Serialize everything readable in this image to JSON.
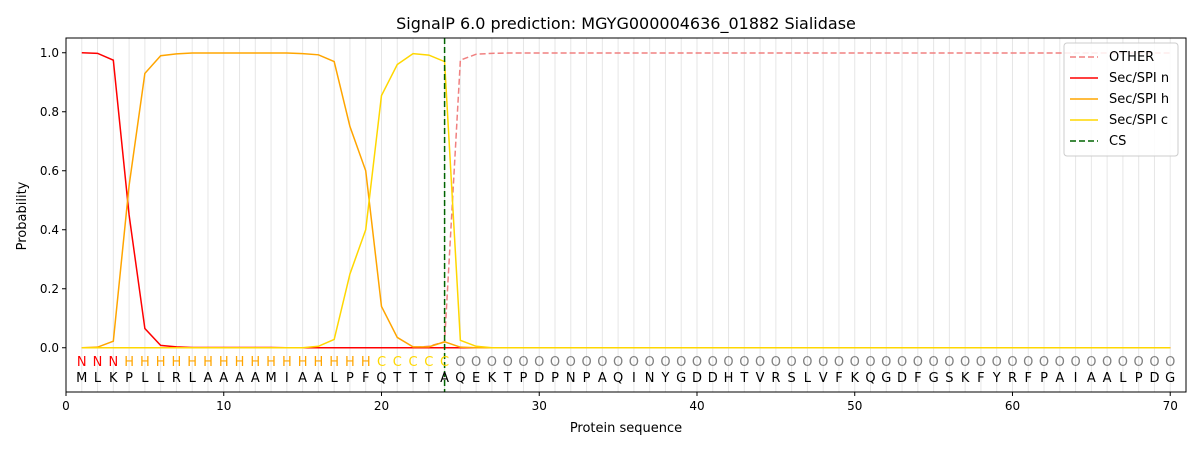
{
  "chart_data": {
    "type": "line",
    "title": "SignalP 6.0 prediction: MGYG000004636_01882 Sialidase",
    "xlabel": "Protein sequence",
    "ylabel": "Probability",
    "xlim": [
      0,
      71
    ],
    "ylim": [
      -0.15,
      1.05
    ],
    "x_ticks": [
      0,
      10,
      20,
      30,
      40,
      50,
      60,
      70
    ],
    "y_ticks": [
      0.0,
      0.2,
      0.4,
      0.6,
      0.8,
      1.0
    ],
    "grid": "vertical lines at each residue",
    "legend_position": "top-right",
    "sequence": [
      "M",
      "L",
      "K",
      "P",
      "L",
      "L",
      "R",
      "L",
      "A",
      "A",
      "A",
      "A",
      "M",
      "I",
      "A",
      "A",
      "L",
      "P",
      "F",
      "Q",
      "T",
      "T",
      "T",
      "A",
      "Q",
      "E",
      "K",
      "T",
      "P",
      "D",
      "P",
      "N",
      "P",
      "A",
      "Q",
      "I",
      "N",
      "Y",
      "G",
      "D",
      "D",
      "H",
      "T",
      "V",
      "R",
      "S",
      "L",
      "V",
      "F",
      "K",
      "Q",
      "G",
      "D",
      "F",
      "G",
      "S",
      "K",
      "F",
      "Y",
      "R",
      "F",
      "P",
      "A",
      "I",
      "A",
      "A",
      "L",
      "P",
      "D",
      "G"
    ],
    "region_labels": [
      "N",
      "N",
      "N",
      "H",
      "H",
      "H",
      "H",
      "H",
      "H",
      "H",
      "H",
      "H",
      "H",
      "H",
      "H",
      "H",
      "H",
      "H",
      "H",
      "C",
      "C",
      "C",
      "C",
      "C",
      "O",
      "O",
      "O",
      "O",
      "O",
      "O",
      "O",
      "O",
      "O",
      "O",
      "O",
      "O",
      "O",
      "O",
      "O",
      "O",
      "O",
      "O",
      "O",
      "O",
      "O",
      "O",
      "O",
      "O",
      "O",
      "O",
      "O",
      "O",
      "O",
      "O",
      "O",
      "O",
      "O",
      "O",
      "O",
      "O",
      "O",
      "O",
      "O",
      "O",
      "O",
      "O",
      "O",
      "O",
      "O",
      "O"
    ],
    "region_colors": {
      "N": "#ff0000",
      "H": "#ffa500",
      "C": "#ffd700",
      "O": "#808080"
    },
    "cleavage_site": 24,
    "series": [
      {
        "name": "OTHER",
        "color": "#f08080",
        "dash": "dashed",
        "values": [
          0,
          0,
          0,
          0,
          0,
          0,
          0,
          0,
          0,
          0,
          0,
          0,
          0,
          0,
          0,
          0,
          0,
          0,
          0,
          0,
          0,
          0,
          0.005,
          0.02,
          0.975,
          0.995,
          0.998,
          0.999,
          0.999,
          0.999,
          0.999,
          0.999,
          0.999,
          0.999,
          0.999,
          0.999,
          0.999,
          0.999,
          0.999,
          0.999,
          0.999,
          0.999,
          0.999,
          0.999,
          0.999,
          0.999,
          0.999,
          0.999,
          0.999,
          0.999,
          0.999,
          0.999,
          0.999,
          0.999,
          0.999,
          0.999,
          0.999,
          0.999,
          0.999,
          0.999,
          0.999,
          0.999,
          0.999,
          0.999,
          0.999,
          0.999,
          0.999,
          0.999,
          0.999,
          0.999
        ]
      },
      {
        "name": "Sec/SPI n",
        "color": "#ff0000",
        "dash": "solid",
        "values": [
          1.0,
          0.998,
          0.975,
          0.45,
          0.065,
          0.008,
          0.003,
          0.001,
          0.001,
          0.001,
          0.001,
          0.001,
          0.001,
          0,
          0,
          0,
          0,
          0,
          0,
          0,
          0,
          0,
          0,
          0,
          0,
          0,
          0,
          0,
          0,
          0,
          0,
          0,
          0,
          0,
          0,
          0,
          0,
          0,
          0,
          0,
          0,
          0,
          0,
          0,
          0,
          0,
          0,
          0,
          0,
          0,
          0,
          0,
          0,
          0,
          0,
          0,
          0,
          0,
          0,
          0,
          0,
          0,
          0,
          0,
          0,
          0,
          0,
          0,
          0,
          0
        ]
      },
      {
        "name": "Sec/SPI h",
        "color": "#ffa500",
        "dash": "solid",
        "values": [
          0,
          0.002,
          0.022,
          0.55,
          0.93,
          0.99,
          0.996,
          0.999,
          0.999,
          0.999,
          0.999,
          0.999,
          0.999,
          0.999,
          0.997,
          0.993,
          0.97,
          0.75,
          0.6,
          0.14,
          0.035,
          0.003,
          0.003,
          0.02,
          0.002,
          0,
          0,
          0,
          0,
          0,
          0,
          0,
          0,
          0,
          0,
          0,
          0,
          0,
          0,
          0,
          0,
          0,
          0,
          0,
          0,
          0,
          0,
          0,
          0,
          0,
          0,
          0,
          0,
          0,
          0,
          0,
          0,
          0,
          0,
          0,
          0,
          0,
          0,
          0,
          0,
          0,
          0,
          0,
          0,
          0
        ]
      },
      {
        "name": "Sec/SPI c",
        "color": "#ffd700",
        "dash": "solid",
        "values": [
          0,
          0,
          0,
          0,
          0,
          0,
          0,
          0,
          0,
          0,
          0,
          0,
          0,
          0,
          0,
          0.005,
          0.028,
          0.25,
          0.4,
          0.855,
          0.96,
          0.997,
          0.992,
          0.97,
          0.025,
          0.005,
          0,
          0,
          0,
          0,
          0,
          0,
          0,
          0,
          0,
          0,
          0,
          0,
          0,
          0,
          0,
          0,
          0,
          0,
          0,
          0,
          0,
          0,
          0,
          0,
          0,
          0,
          0,
          0,
          0,
          0,
          0,
          0,
          0,
          0,
          0,
          0,
          0,
          0,
          0,
          0,
          0,
          0,
          0,
          0
        ]
      },
      {
        "name": "CS",
        "color": "#006400",
        "dash": "dashed",
        "values": []
      }
    ]
  }
}
